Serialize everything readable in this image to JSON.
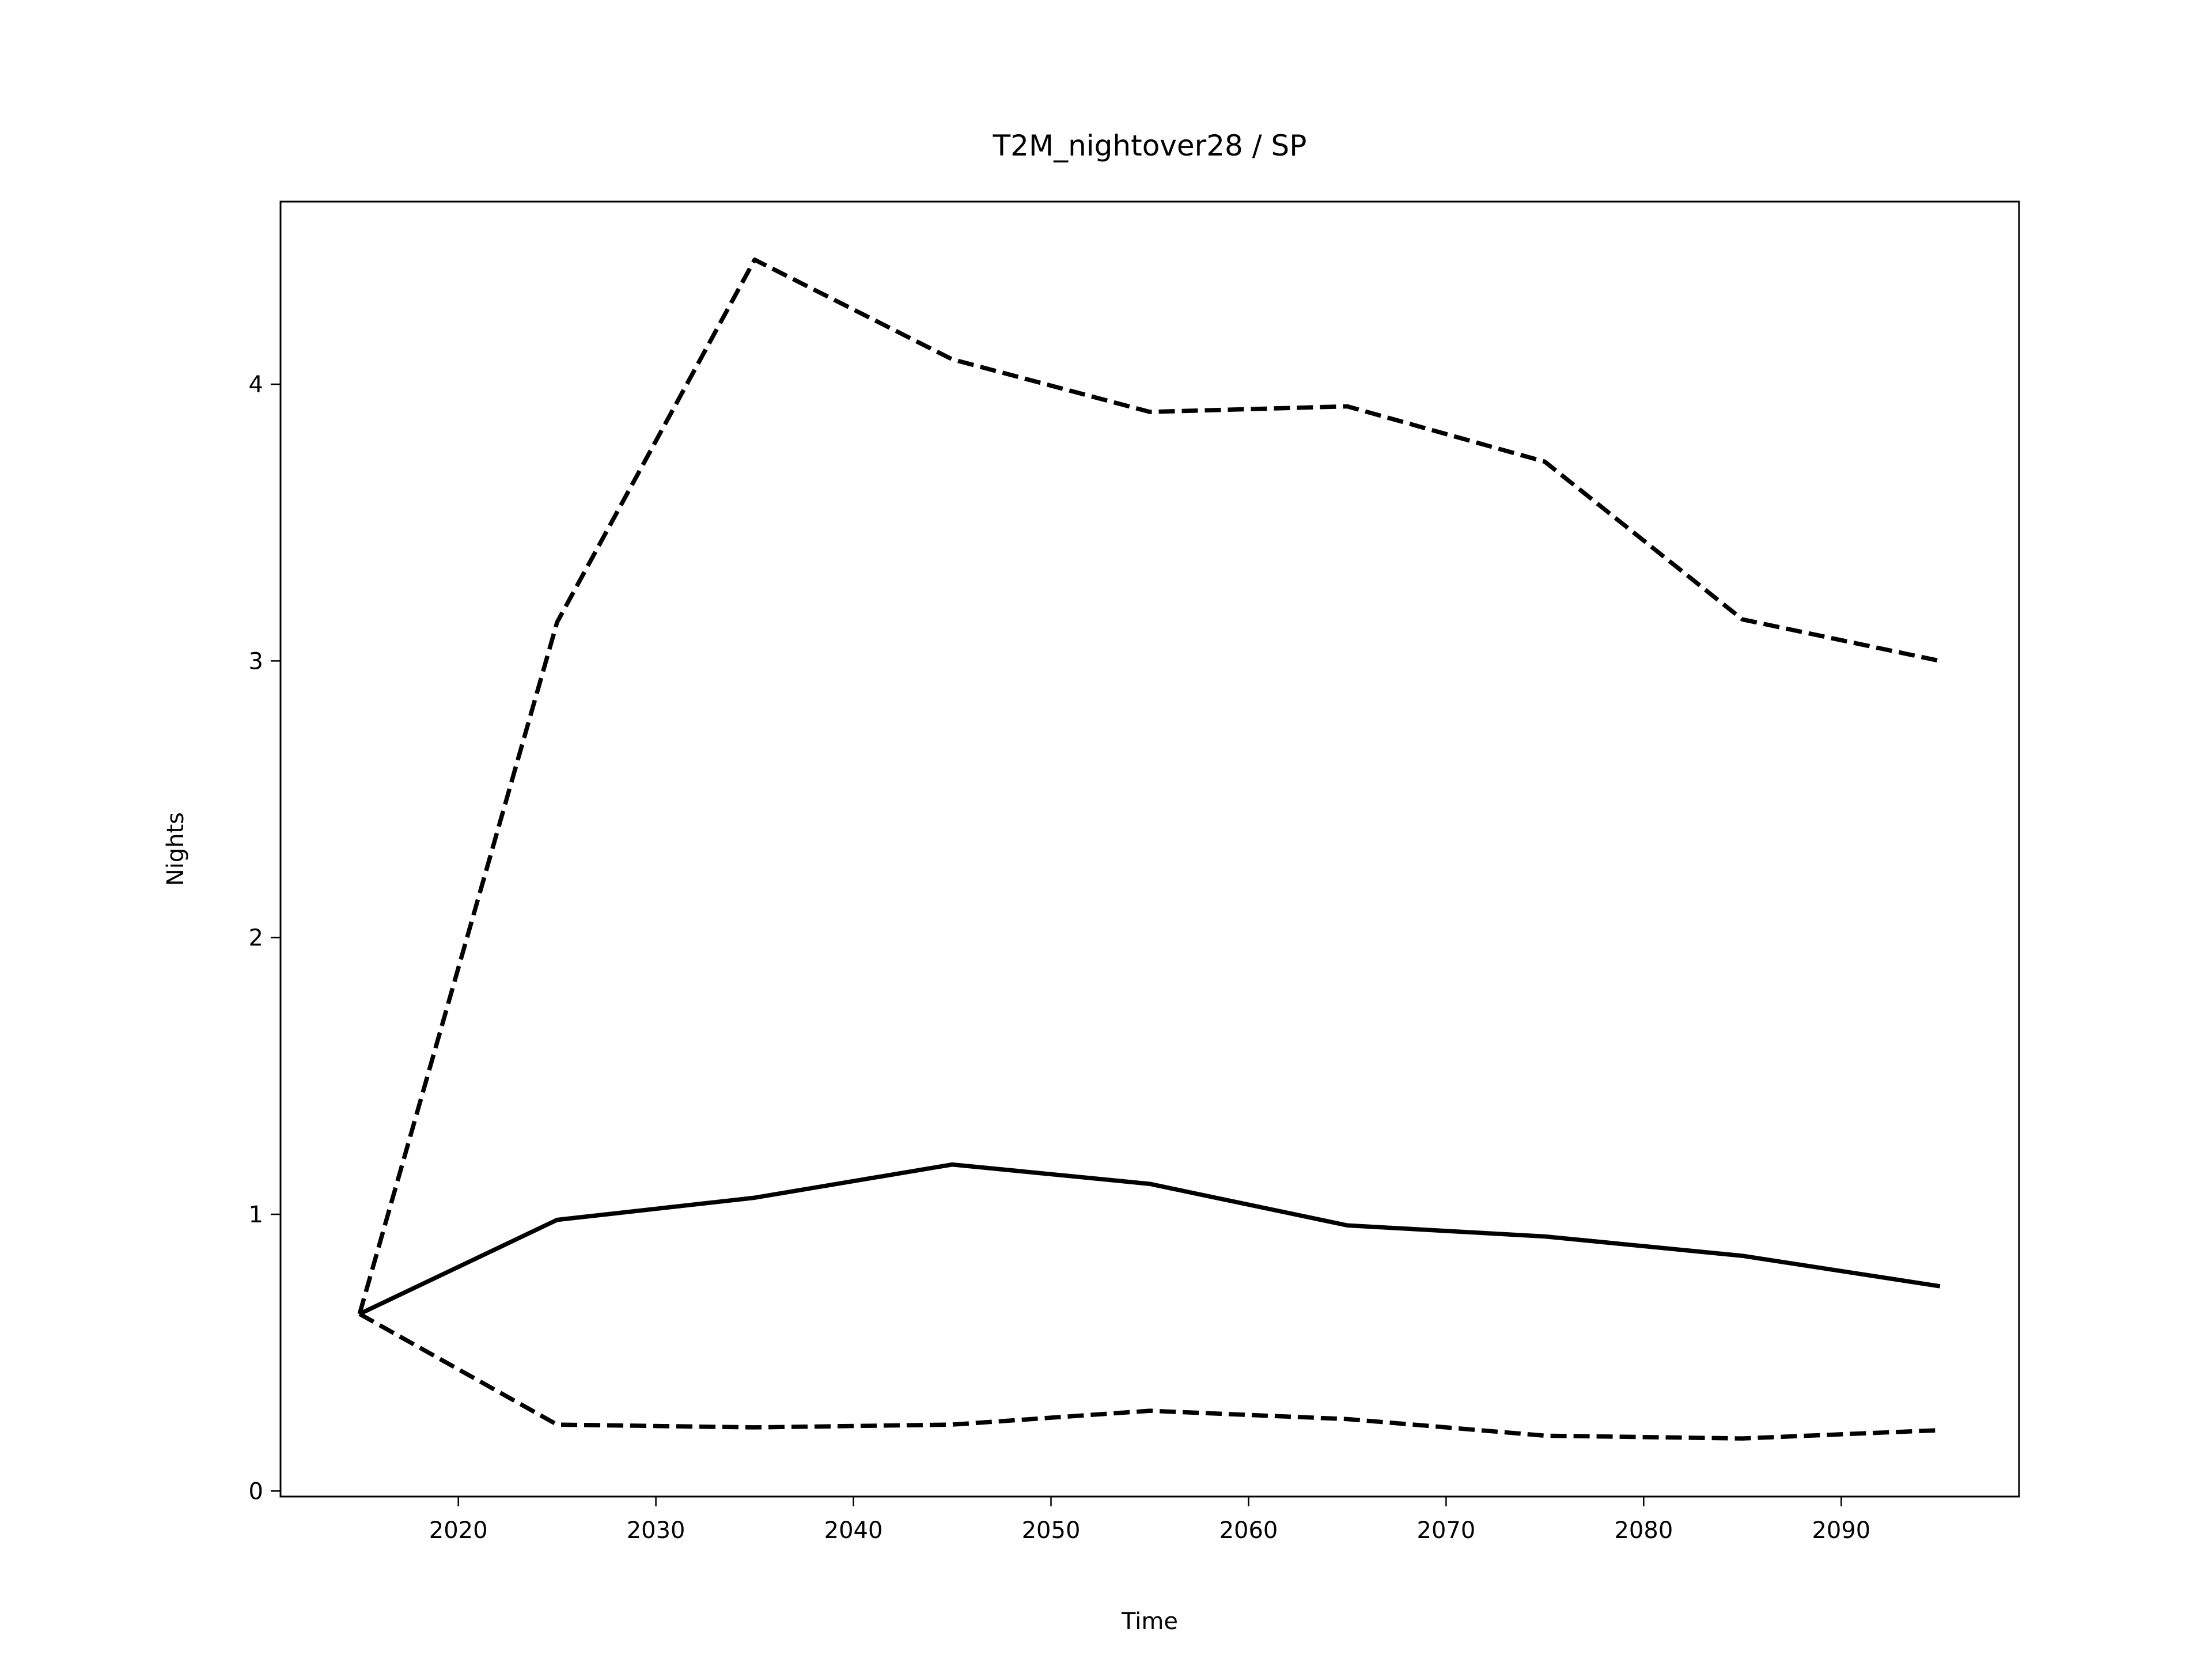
{
  "chart_data": {
    "type": "line",
    "title": "T2M_nightover28 / SP",
    "xlabel": "Time",
    "ylabel": "Nights",
    "x": [
      2015,
      2025,
      2035,
      2045,
      2055,
      2065,
      2075,
      2085,
      2095
    ],
    "series": [
      {
        "color": "#000000",
        "style": "solid",
        "values": [
          0.64,
          0.98,
          1.06,
          1.18,
          1.11,
          0.96,
          0.92,
          0.85,
          0.74
        ]
      },
      {
        "color": "#000000",
        "style": "dashed",
        "values": [
          0.64,
          3.14,
          4.45,
          4.09,
          3.9,
          3.92,
          3.72,
          3.15,
          3.0
        ]
      },
      {
        "color": "#000000",
        "style": "dashed",
        "values": [
          0.64,
          0.24,
          0.23,
          0.24,
          0.29,
          0.26,
          0.2,
          0.19,
          0.22
        ]
      }
    ],
    "xlim": [
      2011,
      2099
    ],
    "xticks": [
      2020,
      2030,
      2040,
      2050,
      2060,
      2070,
      2080,
      2090
    ],
    "ylim": [
      -0.02,
      4.66
    ],
    "yticks": [
      0,
      1,
      2,
      3,
      4
    ]
  }
}
